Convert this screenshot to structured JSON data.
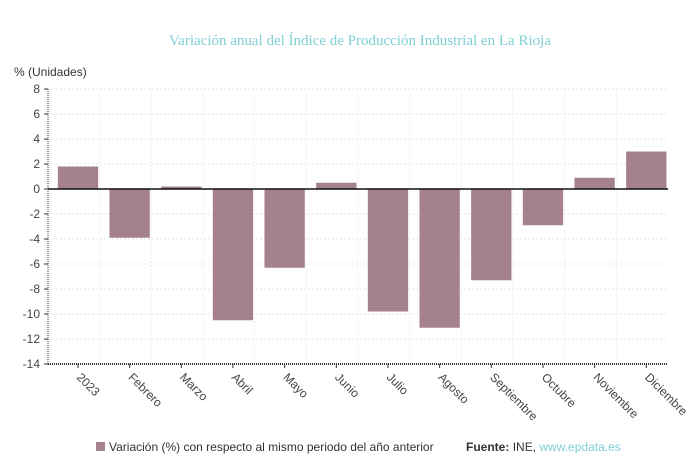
{
  "chart_data": {
    "type": "bar",
    "title": "Variación anual del Índice de Producción Industrial en La Rioja",
    "ylabel": "% (Unidades)",
    "xlabel": "",
    "categories": [
      "2023",
      "Febrero",
      "Marzo",
      "Abril",
      "Mayo",
      "Junio",
      "Julio",
      "Agosto",
      "Septiembre",
      "Octubre",
      "Noviembre",
      "Diciembre"
    ],
    "series": [
      {
        "name": "Variación (%) con respecto al mismo periodo del año anterior",
        "values": [
          1.8,
          -3.9,
          0.2,
          -10.5,
          -6.3,
          0.5,
          -9.8,
          -11.1,
          -7.3,
          -2.9,
          0.9,
          3.0
        ]
      }
    ],
    "ylim": [
      -14,
      8
    ],
    "yticks": [
      8,
      6,
      4,
      2,
      0,
      -2,
      -4,
      -6,
      -8,
      -10,
      -12,
      -14
    ],
    "grid": true,
    "legend_position": "bottom",
    "bar_color": "#a5808d"
  },
  "source": {
    "label": "Fuente:",
    "text": "INE,",
    "link": "www.epdata.es"
  }
}
